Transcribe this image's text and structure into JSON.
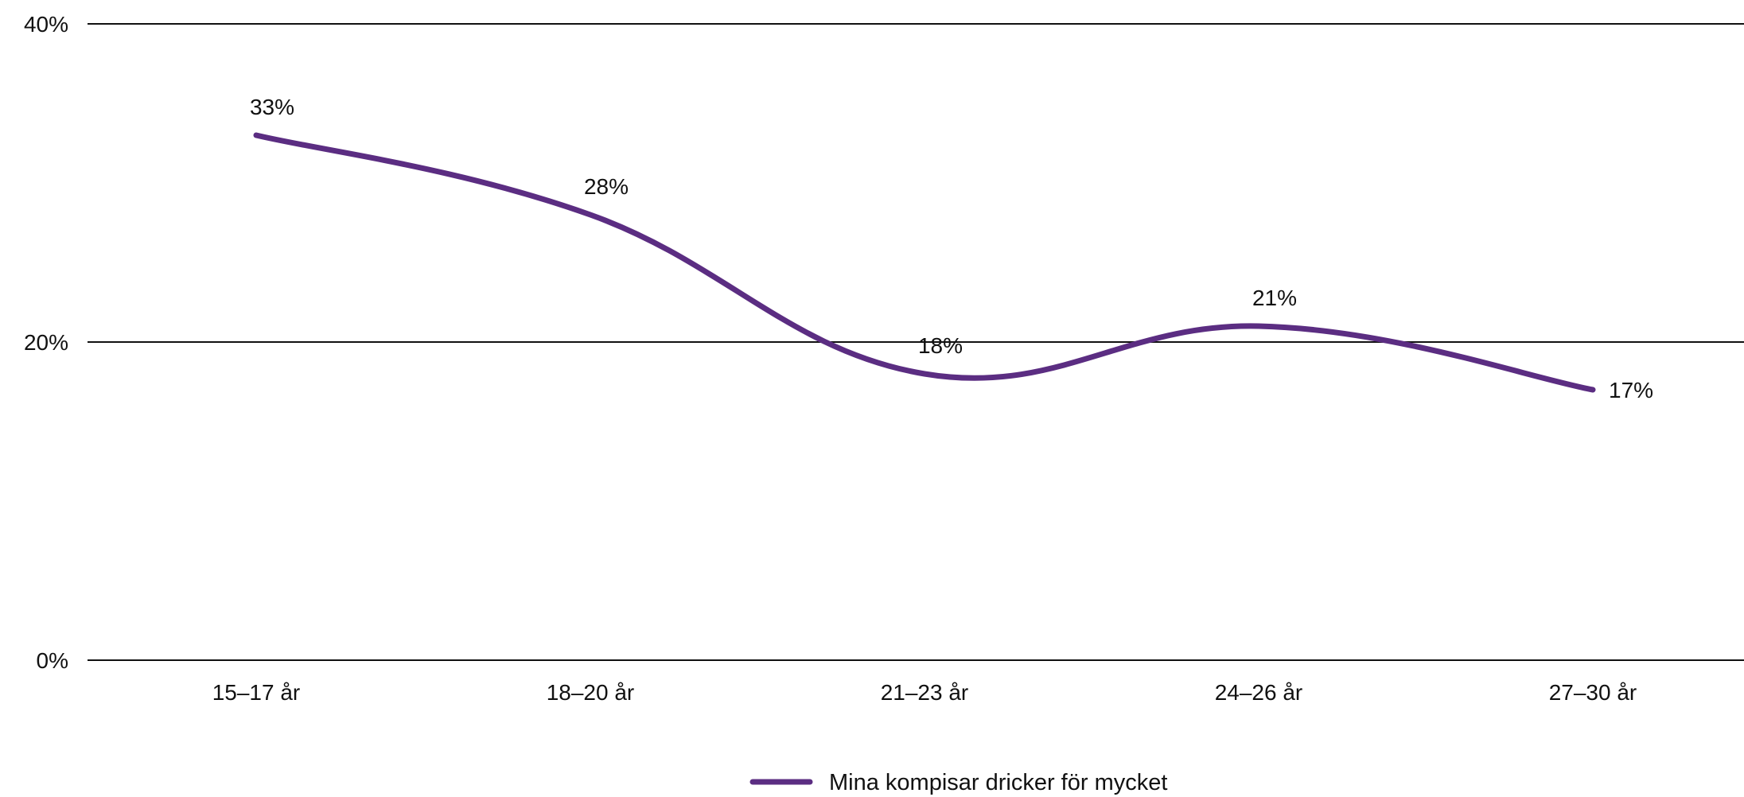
{
  "chart_data": {
    "type": "line",
    "categories": [
      "15–17 år",
      "18–20 år",
      "21–23 år",
      "24–26 år",
      "27–30 år"
    ],
    "series": [
      {
        "name": "Mina kompisar dricker för mycket",
        "values": [
          33,
          28,
          18,
          21,
          17
        ],
        "value_labels": [
          "33%",
          "28%",
          "18%",
          "21%",
          "17%"
        ],
        "color": "#5b2d82"
      }
    ],
    "ylim": [
      0,
      40
    ],
    "y_ticks": [
      0,
      20,
      40
    ],
    "y_tick_labels": [
      "0%",
      "20%",
      "40%"
    ],
    "grid": true,
    "legend_position": "bottom-center"
  }
}
